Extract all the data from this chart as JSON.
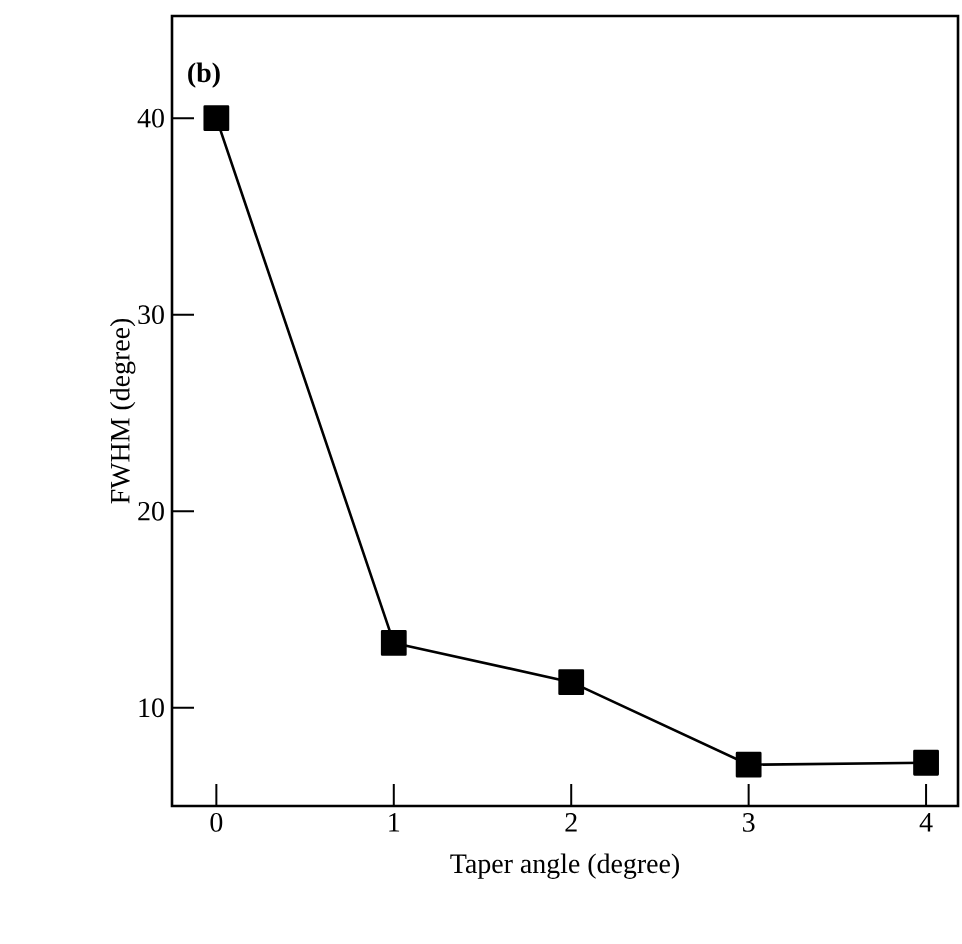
{
  "chart_data": {
    "type": "line",
    "xlabel": "Taper angle (degree)",
    "ylabel": "FWHM (degree)",
    "annotations": [
      "(b)"
    ],
    "x": [
      0,
      1,
      2,
      3,
      4
    ],
    "series": [
      {
        "color": "#000000",
        "values": [
          40,
          13.3,
          11.3,
          7.1,
          7.2
        ]
      }
    ],
    "xlim": [
      -0.25,
      4.18
    ],
    "ylim": [
      5,
      45.2
    ],
    "xticks": [
      0,
      1,
      2,
      3,
      4
    ],
    "yticks": [
      10,
      20,
      30,
      40
    ],
    "marker": "square",
    "line_style": "solid",
    "grid": false
  }
}
